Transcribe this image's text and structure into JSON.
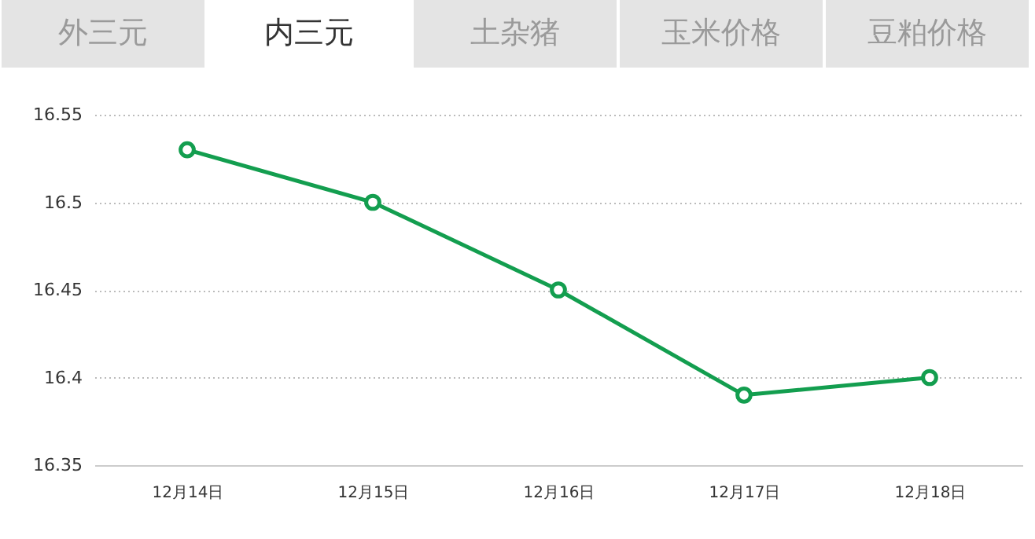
{
  "chart_data": {
    "type": "line",
    "annotations": [
      "外三元",
      "内三元",
      "土杂猪",
      "玉米价格",
      "豆粕价格"
    ],
    "categories": [
      "12月14日",
      "12月15日",
      "12月16日",
      "12月17日",
      "12月18日"
    ],
    "series": [
      {
        "color": "#139e4f",
        "values": [
          16.53,
          16.5,
          16.45,
          16.39,
          16.4
        ]
      }
    ],
    "ylim": [
      16.35,
      16.55
    ],
    "yticks": [
      16.35,
      16.4,
      16.45,
      16.5,
      16.55
    ],
    "grid": "y",
    "marker": "circle",
    "line_style": "solid"
  }
}
